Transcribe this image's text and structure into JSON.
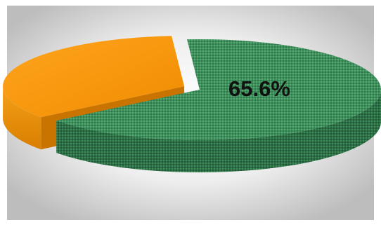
{
  "chart_data": {
    "type": "pie",
    "style": "3d-exploded",
    "title": "",
    "slices": [
      {
        "value": 65.6,
        "color": "#3f8f5c",
        "label": "65.6%",
        "exploded": false
      },
      {
        "value": 34.4,
        "color": "#f39200",
        "label": "",
        "exploded": true
      }
    ],
    "legend": "none"
  }
}
